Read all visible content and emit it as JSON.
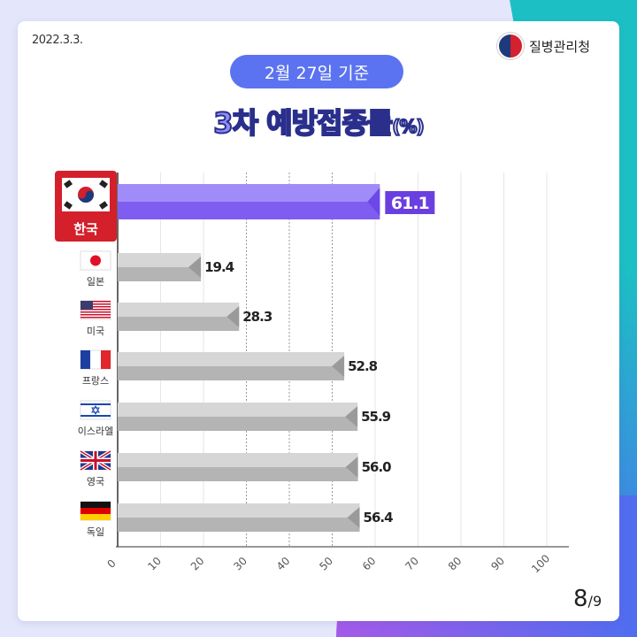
{
  "date": "2022.3.3.",
  "logo_text": "질병관리청",
  "badge": "2월 27일 기준",
  "title": {
    "highlight": "3차",
    "main": "예방접종률",
    "unit": "(%)"
  },
  "page": {
    "current": "8",
    "total": "/9"
  },
  "colors": {
    "highlight_bar": "#8b6ff5",
    "highlight_label_bg": "#6a3fe0",
    "bar": "#bdbdbd",
    "korea_tag": "#d3202b"
  },
  "chart_data": {
    "type": "bar",
    "orientation": "horizontal",
    "categories": [
      "한국",
      "일본",
      "미국",
      "프랑스",
      "이스라엘",
      "영국",
      "독일"
    ],
    "flags": [
      "korea-flag-icon",
      "japan-flag-icon",
      "usa-flag-icon",
      "france-flag-icon",
      "israel-flag-icon",
      "uk-flag-icon",
      "germany-flag-icon"
    ],
    "values": [
      61.1,
      19.4,
      28.3,
      52.8,
      55.9,
      56.0,
      56.4
    ],
    "labels": [
      "61.1",
      "19.4",
      "28.3",
      "52.8",
      "55.9",
      "56.0",
      "56.4"
    ],
    "highlight": "한국",
    "xlim": [
      0,
      100
    ],
    "xticks": [
      "0",
      "10",
      "20",
      "30",
      "40",
      "50",
      "60",
      "70",
      "80",
      "90",
      "100"
    ],
    "grid": true
  }
}
